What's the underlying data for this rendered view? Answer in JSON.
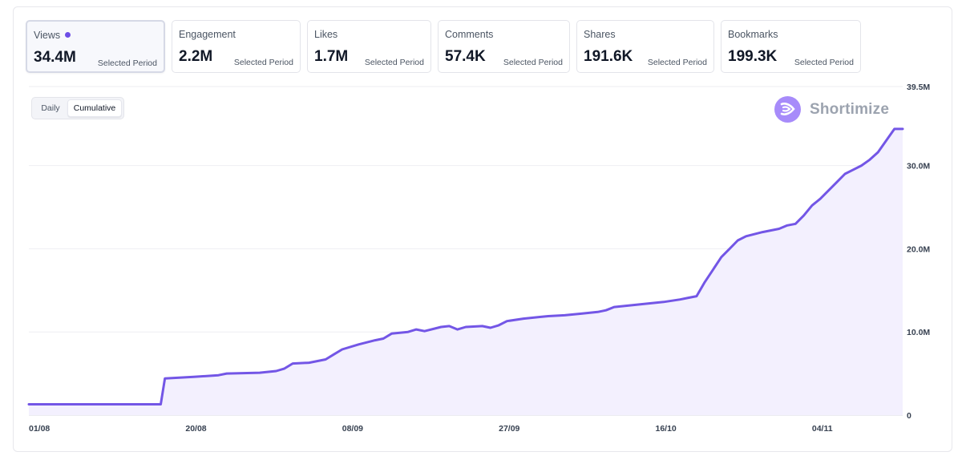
{
  "metrics": [
    {
      "label": "Views",
      "value": "34.4M",
      "period": "Selected Period",
      "selected": true
    },
    {
      "label": "Engagement",
      "value": "2.2M",
      "period": "Selected Period"
    },
    {
      "label": "Likes",
      "value": "1.7M",
      "period": "Selected Period"
    },
    {
      "label": "Comments",
      "value": "57.4K",
      "period": "Selected Period"
    },
    {
      "label": "Shares",
      "value": "191.6K",
      "period": "Selected Period"
    },
    {
      "label": "Bookmarks",
      "value": "199.3K",
      "period": "Selected Period"
    }
  ],
  "toggle": {
    "daily": "Daily",
    "cumulative": "Cumulative",
    "active": "cumulative"
  },
  "brand": {
    "name": "Shortimize"
  },
  "colors": {
    "line": "#7356e6",
    "fill": "#f3f0fe",
    "grid": "#eeeef2",
    "dot": "#6d4ee6",
    "logo": "#a78bfa"
  },
  "chart_data": {
    "type": "area",
    "xlabel": "",
    "ylabel": "",
    "ylim": [
      0,
      39.5
    ],
    "yunit": "M",
    "grid": true,
    "y_ticks": [
      {
        "value": 0,
        "label": "0"
      },
      {
        "value": 10,
        "label": "10.0M"
      },
      {
        "value": 20,
        "label": "20.0M"
      },
      {
        "value": 30,
        "label": "30.0M"
      },
      {
        "value": 39.5,
        "label": "39.5M"
      }
    ],
    "x_ticks": [
      {
        "day": 0,
        "label": "01/08"
      },
      {
        "day": 19,
        "label": "20/08"
      },
      {
        "day": 38,
        "label": "08/09"
      },
      {
        "day": 57,
        "label": "27/09"
      },
      {
        "day": 76,
        "label": "16/10"
      },
      {
        "day": 95,
        "label": "04/11"
      }
    ],
    "xlim": [
      0,
      106
    ],
    "series": [
      {
        "values": [
          [
            0,
            1.3
          ],
          [
            16,
            1.3
          ],
          [
            16.5,
            4.4
          ],
          [
            20,
            4.6
          ],
          [
            23,
            4.8
          ],
          [
            24,
            5.0
          ],
          [
            28,
            5.1
          ],
          [
            30,
            5.3
          ],
          [
            31,
            5.6
          ],
          [
            32,
            6.2
          ],
          [
            34,
            6.3
          ],
          [
            36,
            6.7
          ],
          [
            37,
            7.3
          ],
          [
            38,
            7.9
          ],
          [
            40,
            8.5
          ],
          [
            42,
            9.0
          ],
          [
            43,
            9.2
          ],
          [
            44,
            9.8
          ],
          [
            46,
            10.0
          ],
          [
            47,
            10.3
          ],
          [
            48,
            10.1
          ],
          [
            50,
            10.6
          ],
          [
            51,
            10.7
          ],
          [
            52,
            10.3
          ],
          [
            53,
            10.6
          ],
          [
            55,
            10.7
          ],
          [
            56,
            10.5
          ],
          [
            57,
            10.8
          ],
          [
            58,
            11.3
          ],
          [
            60,
            11.6
          ],
          [
            62,
            11.8
          ],
          [
            63,
            11.9
          ],
          [
            65,
            12.0
          ],
          [
            67,
            12.2
          ],
          [
            69,
            12.4
          ],
          [
            70,
            12.6
          ],
          [
            71,
            13.0
          ],
          [
            73,
            13.2
          ],
          [
            75,
            13.4
          ],
          [
            77,
            13.6
          ],
          [
            79,
            13.9
          ],
          [
            80,
            14.1
          ],
          [
            81,
            14.3
          ],
          [
            82,
            16.0
          ],
          [
            83,
            17.5
          ],
          [
            84,
            19.0
          ],
          [
            85,
            20.0
          ],
          [
            86,
            21.0
          ],
          [
            87,
            21.5
          ],
          [
            89,
            22.0
          ],
          [
            91,
            22.4
          ],
          [
            92,
            22.8
          ],
          [
            93,
            23.0
          ],
          [
            94,
            24.0
          ],
          [
            95,
            25.2
          ],
          [
            96,
            26.0
          ],
          [
            97,
            27.0
          ],
          [
            98,
            28.0
          ],
          [
            99,
            29.0
          ],
          [
            100,
            29.5
          ],
          [
            101,
            30.0
          ],
          [
            102,
            30.7
          ],
          [
            103,
            31.6
          ],
          [
            104,
            33.0
          ],
          [
            105,
            34.4
          ],
          [
            106,
            34.4
          ]
        ]
      }
    ]
  }
}
